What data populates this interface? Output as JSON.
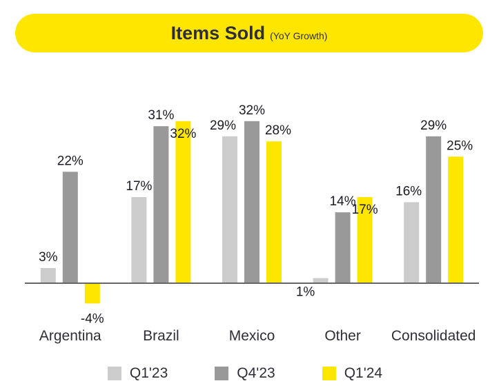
{
  "chart_data": {
    "type": "bar",
    "title": "Items Sold",
    "subtitle": "(YoY Growth)",
    "categories": [
      "Argentina",
      "Brazil",
      "Mexico",
      "Other",
      "Consolidated"
    ],
    "series": [
      {
        "name": "Q1'23",
        "color": "#cccccc",
        "values": [
          3,
          17,
          29,
          1,
          16
        ],
        "labels": [
          "3%",
          "17%",
          "29%",
          "1%",
          "16%"
        ]
      },
      {
        "name": "Q4'23",
        "color": "#999999",
        "values": [
          22,
          31,
          32,
          14,
          29
        ],
        "labels": [
          "22%",
          "31%",
          "32%",
          "14%",
          "29%"
        ]
      },
      {
        "name": "Q1'24",
        "color": "#ffe600",
        "values": [
          -4,
          32,
          28,
          17,
          25
        ],
        "labels": [
          "-4%",
          "32%",
          "28%",
          "17%",
          "25%"
        ]
      }
    ],
    "ylim": [
      -5,
      37
    ],
    "grid": false,
    "legend": "bottom",
    "value_axis_visible": false
  }
}
